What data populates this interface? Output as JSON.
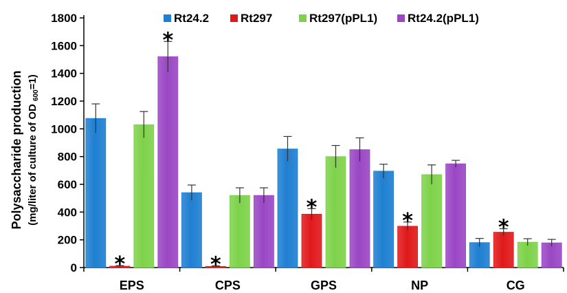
{
  "chart_data": {
    "type": "bar",
    "categories": [
      "EPS",
      "CPS",
      "GPS",
      "NP",
      "CG"
    ],
    "series": [
      {
        "name": "Rt24.2",
        "color": "#1f7fd1",
        "values": [
          1075,
          540,
          855,
          695,
          180
        ],
        "errors": [
          105,
          55,
          90,
          50,
          30
        ]
      },
      {
        "name": "Rt297",
        "color": "#e0191a",
        "values": [
          10,
          8,
          385,
          298,
          255
        ],
        "errors": [
          4,
          4,
          40,
          30,
          25
        ]
      },
      {
        "name": "Rt297(pPL1)",
        "color": "#7ed24a",
        "values": [
          1030,
          520,
          800,
          670,
          183
        ],
        "errors": [
          95,
          55,
          80,
          70,
          25
        ]
      },
      {
        "name": "Rt24.2(pPL1)",
        "color": "#9a47c4",
        "values": [
          1520,
          520,
          850,
          748,
          178
        ],
        "errors": [
          110,
          55,
          85,
          25,
          25
        ]
      }
    ],
    "significance": [
      {
        "category": "EPS",
        "series": "Rt297",
        "mark": "*"
      },
      {
        "category": "EPS",
        "series": "Rt24.2(pPL1)",
        "mark": "*"
      },
      {
        "category": "CPS",
        "series": "Rt297",
        "mark": "*"
      },
      {
        "category": "GPS",
        "series": "Rt297",
        "mark": "*"
      },
      {
        "category": "NP",
        "series": "Rt297",
        "mark": "*"
      },
      {
        "category": "CG",
        "series": "Rt297",
        "mark": "*"
      }
    ],
    "ylabel": "Polysaccharide production",
    "ylabel2": "(mg/liter of culture of OD600=1)",
    "ylabel2_parts": {
      "before": "(mg/liter of culture of OD ",
      "sub": "600",
      "after": "=1)"
    },
    "ylim": [
      0,
      1800
    ],
    "yticks": [
      0,
      200,
      400,
      600,
      800,
      1000,
      1200,
      1400,
      1600,
      1800
    ],
    "grid": false,
    "legend_position": "top"
  }
}
